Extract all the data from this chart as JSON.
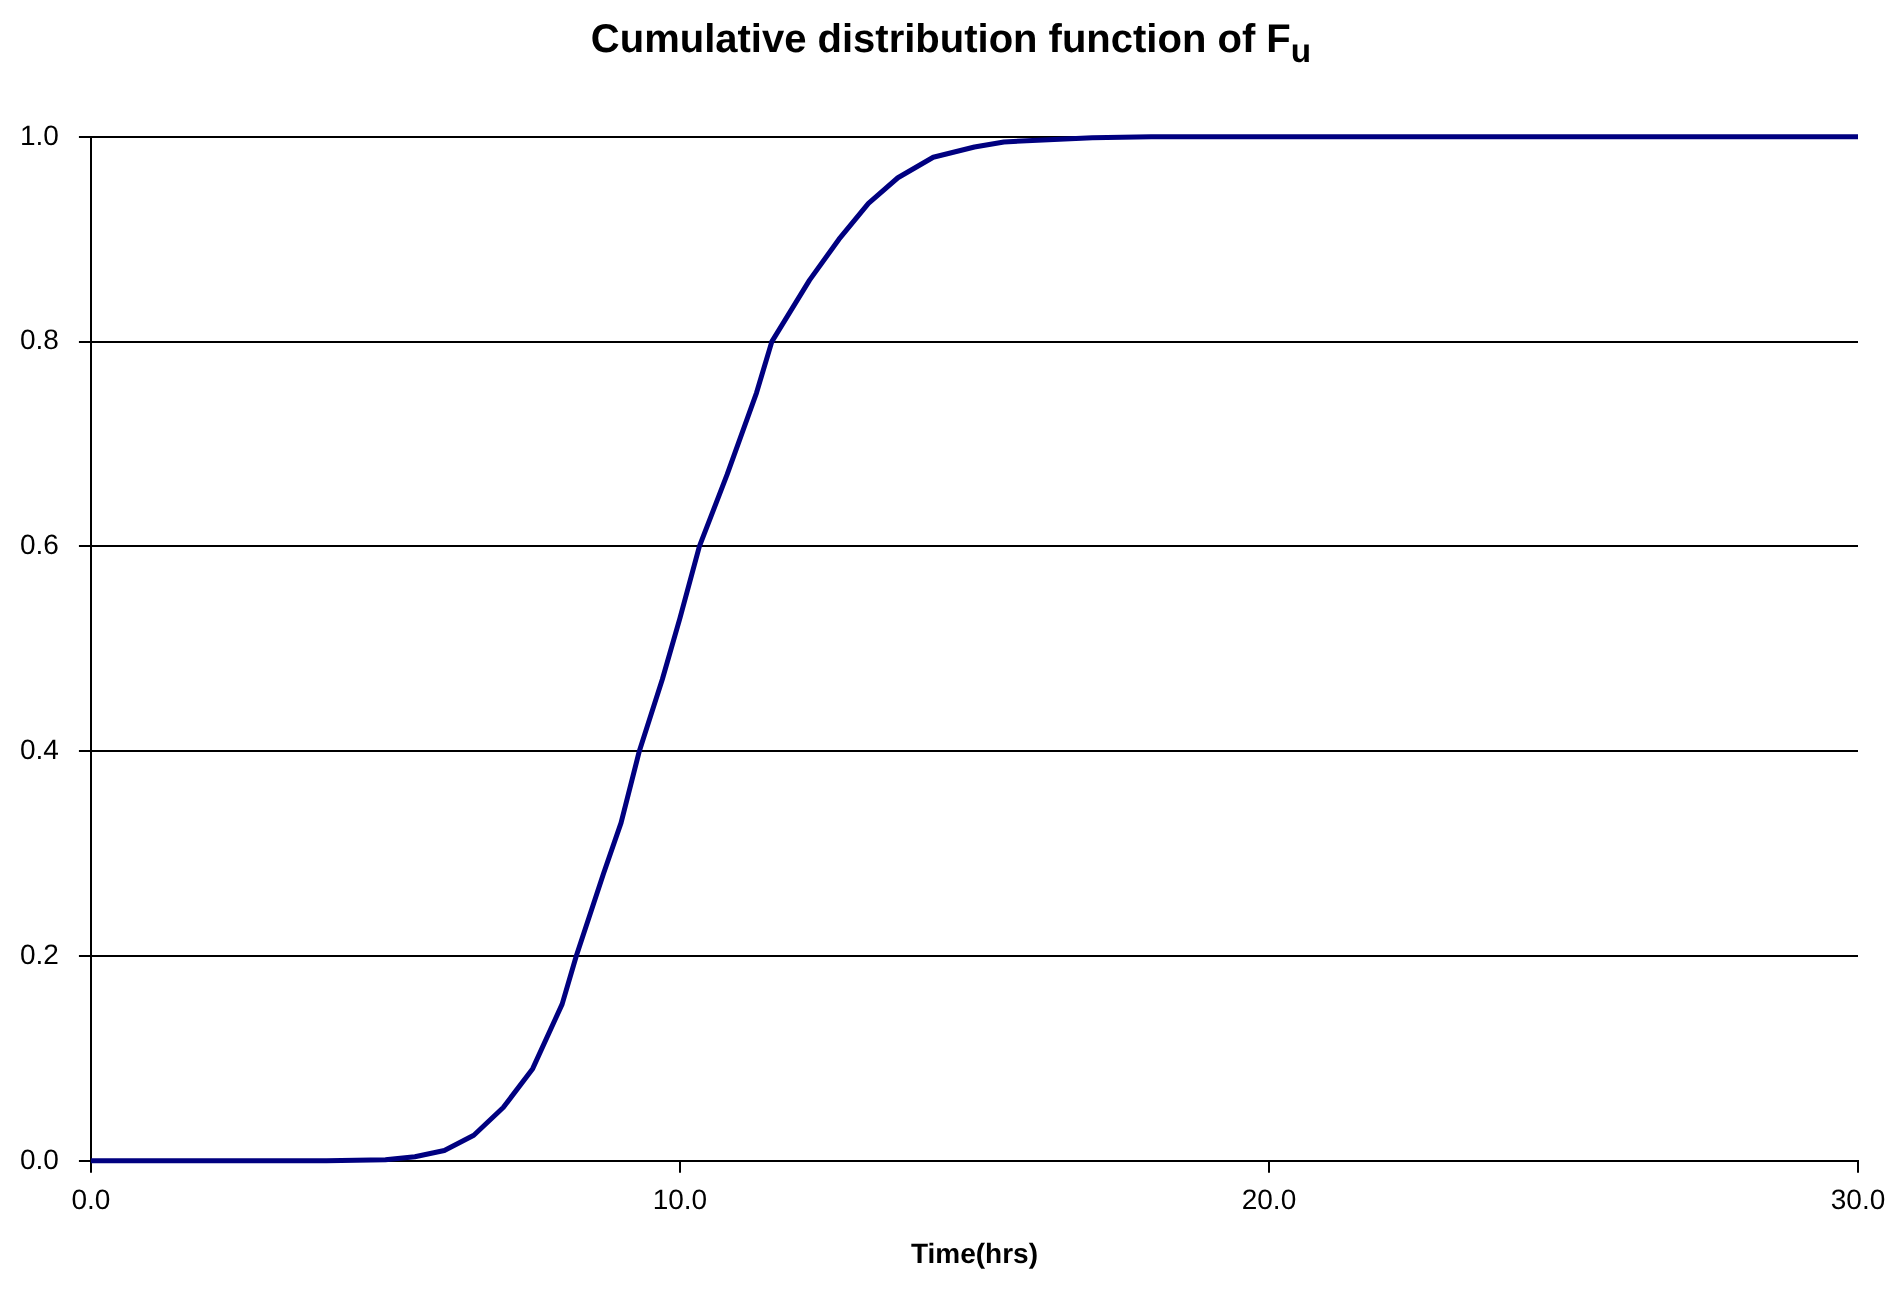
{
  "chart_data": {
    "type": "line",
    "title": "Cumulative distribution function of F$_{u}$",
    "xlabel": "Time(hrs)",
    "series": [
      {
        "color": "#000080",
        "x": [
          0,
          2,
          4,
          5,
          5.5,
          6,
          6.5,
          7,
          7.5,
          8,
          8.24,
          8.7,
          9,
          9.31,
          9.7,
          10,
          10.33,
          10.8,
          11.3,
          11.56,
          12.2,
          12.7,
          13.2,
          13.7,
          14.3,
          15,
          15.5,
          17,
          18,
          20,
          25,
          30
        ],
        "values": [
          0,
          0,
          0,
          0.001,
          0.004,
          0.01,
          0.025,
          0.052,
          0.09,
          0.153,
          0.2,
          0.28,
          0.33,
          0.4,
          0.47,
          0.53,
          0.6,
          0.67,
          0.75,
          0.8,
          0.86,
          0.9,
          0.935,
          0.96,
          0.98,
          0.99,
          0.995,
          0.999,
          1,
          1,
          1,
          1
        ]
      }
    ],
    "xlim": [
      0,
      30
    ],
    "xticks": [
      {
        "value": 0,
        "label": "0.0"
      },
      {
        "value": 10,
        "label": "10.0"
      },
      {
        "value": 20,
        "label": "20.0"
      },
      {
        "value": 30,
        "label": "30.0"
      }
    ],
    "ylim": [
      0,
      1
    ],
    "yticks": [
      {
        "value": 0,
        "label": "0.0"
      },
      {
        "value": 0.2,
        "label": "0.2"
      },
      {
        "value": 0.4,
        "label": "0.4"
      },
      {
        "value": 0.6,
        "label": "0.6"
      },
      {
        "value": 0.8,
        "label": "0.8"
      },
      {
        "value": 1,
        "label": "1.0"
      }
    ],
    "grid": "y",
    "legend": false,
    "marker": "none",
    "line_style": "solid"
  }
}
